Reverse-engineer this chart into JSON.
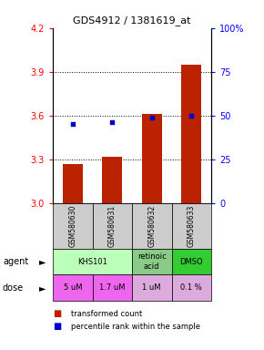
{
  "title": "GDS4912 / 1381619_at",
  "samples": [
    "GSM580630",
    "GSM580631",
    "GSM580632",
    "GSM580633"
  ],
  "bar_values": [
    3.27,
    3.32,
    3.61,
    3.95
  ],
  "percentile_values": [
    45,
    46,
    49,
    50
  ],
  "ylim_left": [
    3.0,
    4.2
  ],
  "ylim_right": [
    0,
    100
  ],
  "yticks_left": [
    3.0,
    3.3,
    3.6,
    3.9,
    4.2
  ],
  "yticks_right": [
    0,
    25,
    50,
    75,
    100
  ],
  "bar_color": "#bb2200",
  "dot_color": "#0000cc",
  "agent_spans": [
    [
      0,
      1,
      "KHS101",
      "#bbffbb"
    ],
    [
      2,
      2,
      "retinoic\nacid",
      "#88cc88"
    ],
    [
      3,
      3,
      "DMSO",
      "#33cc33"
    ]
  ],
  "dose_labels": [
    "5 uM",
    "1.7 uM",
    "1 uM",
    "0.1 %"
  ],
  "dose_colors": [
    "#ee66ee",
    "#ee66ee",
    "#ddaadd",
    "#ddaadd"
  ],
  "sample_bg": "#cccccc",
  "grid_dotted_at": [
    3.3,
    3.6,
    3.9
  ]
}
